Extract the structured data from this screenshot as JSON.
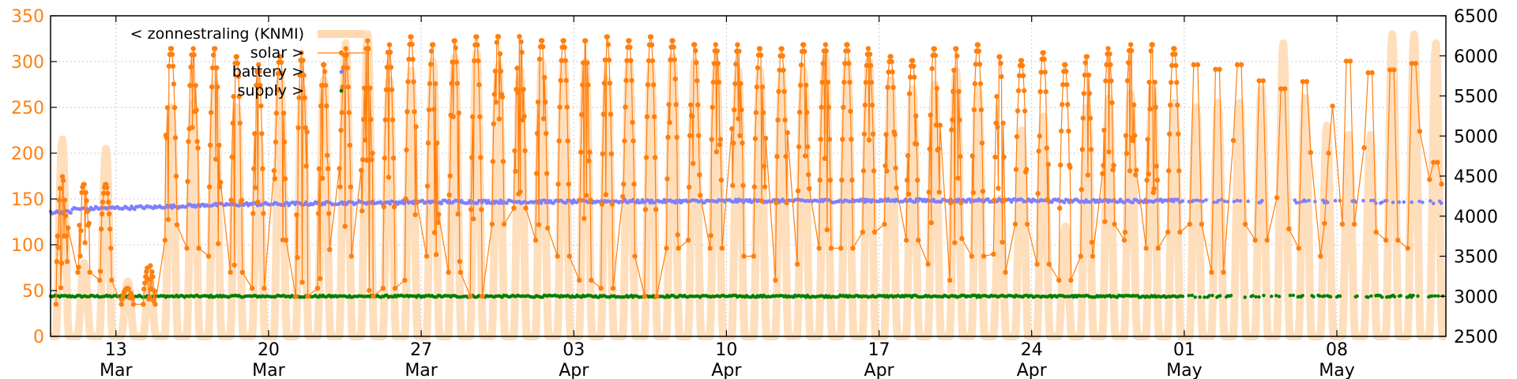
{
  "chart_data": {
    "type": "line",
    "title": "",
    "xlabel": "",
    "ylabel_left": "",
    "ylabel_right": "",
    "x_range": [
      "2024-03-10",
      "2024-05-13"
    ],
    "ylim_left": [
      0,
      350
    ],
    "ylim_right": [
      2500,
      6500
    ],
    "grid": true,
    "legend_position": "top-left",
    "y_ticks_left": [
      "0",
      "50",
      "100",
      "150",
      "200",
      "250",
      "300",
      "350"
    ],
    "y_ticks_right": [
      "2500",
      "3000",
      "3500",
      "4000",
      "4500",
      "5000",
      "5500",
      "6000",
      "6500"
    ],
    "x_ticks": [
      {
        "day": "13",
        "month": "Mar"
      },
      {
        "day": "20",
        "month": "Mar"
      },
      {
        "day": "27",
        "month": "Mar"
      },
      {
        "day": "03",
        "month": "Apr"
      },
      {
        "day": "10",
        "month": "Apr"
      },
      {
        "day": "17",
        "month": "Apr"
      },
      {
        "day": "24",
        "month": "Apr"
      },
      {
        "day": "01",
        "month": "May"
      },
      {
        "day": "08",
        "month": "May"
      }
    ],
    "legend": [
      {
        "label": "< zonnestraling (KNMI)",
        "color": "#ffd8b0"
      },
      {
        "label": "solar >",
        "color": "#ff7f0e"
      },
      {
        "label": "battery >",
        "color": "#7f7fff"
      },
      {
        "label": "supply >",
        "color": "#007f00"
      }
    ],
    "colors": {
      "zonnestraling": "#ffd8b0",
      "solar": "#ff7f0e",
      "battery": "#7f7fff",
      "supply": "#007f00",
      "left_axis": "#ff7f0e",
      "grid": "#cccccc"
    },
    "series": [
      {
        "name": "< zonnestraling (KNMI)",
        "axis": "left",
        "daily_peak": [
          215,
          80,
          205,
          60,
          60,
          250,
          255,
          275,
          250,
          220,
          285,
          270,
          280,
          320,
          330,
          280,
          290,
          300,
          305,
          310,
          295,
          290,
          300,
          300,
          300,
          280,
          300,
          295,
          305,
          300,
          295,
          290,
          290,
          285,
          290,
          305,
          300,
          300,
          280,
          270,
          275,
          290,
          270,
          150,
          225,
          240,
          120,
          250,
          260,
          265,
          270,
          255,
          250,
          255,
          255,
          270,
          320,
          260,
          230,
          220,
          220,
          330,
          330,
          320
        ]
      },
      {
        "name": "solar >",
        "axis": "right",
        "daily_peak_mW": [
          4500,
          4400,
          4400,
          3100,
          3400,
          6100,
          6100,
          6100,
          6000,
          5900,
          6000,
          6050,
          5900,
          6100,
          6200,
          6150,
          6250,
          6150,
          6200,
          6250,
          6250,
          6250,
          6200,
          6200,
          6200,
          6250,
          6200,
          6250,
          6200,
          6150,
          6150,
          6150,
          6100,
          6100,
          6150,
          6150,
          6150,
          6100,
          6000,
          5950,
          6100,
          6100,
          6150,
          6000,
          5950,
          6050,
          5900,
          6000,
          6100,
          6150,
          6150,
          6100,
          6100,
          6100,
          6100,
          5900,
          5800,
          5900,
          6250,
          6150,
          6000,
          6050,
          6150,
          4700
        ],
        "daily_min_mW": [
          2900,
          3300,
          3200,
          2900,
          2900,
          3700,
          3600,
          3500,
          3300,
          3100,
          3700,
          3000,
          3100,
          3500,
          3000,
          3100,
          3200,
          3500,
          3300,
          3000,
          3900,
          4100,
          3700,
          3500,
          3200,
          3100,
          3500,
          3000,
          3600,
          3700,
          3600,
          3500,
          3500,
          3200,
          3400,
          3600,
          3600,
          3800,
          3900,
          3700,
          3400,
          3200,
          3500,
          3300,
          3900,
          3400,
          3200,
          3500,
          3900,
          3700,
          3600,
          3800,
          3900,
          3300,
          3900,
          3700,
          3600,
          3600,
          3500,
          3900,
          3800,
          3700,
          3600,
          4400
        ]
      },
      {
        "name": "battery >",
        "axis": "right",
        "daily_mean_mW": [
          4050,
          4090,
          4100,
          4105,
          4110,
          4120,
          4130,
          4140,
          4145,
          4150,
          4150,
          4155,
          4160,
          4165,
          4170,
          4170,
          4175,
          4175,
          4180,
          4180,
          4180,
          4180,
          4180,
          4180,
          4180,
          4185,
          4185,
          4185,
          4185,
          4185,
          4185,
          4190,
          4190,
          4190,
          4190,
          4190,
          4190,
          4195,
          4195,
          4195,
          4195,
          4195,
          4195,
          4195,
          4195,
          4190,
          4190,
          4190,
          4190,
          4190,
          4190,
          4190,
          4190,
          4190,
          4180,
          4180,
          4180,
          4180,
          4180,
          4180,
          4180,
          4180,
          4175,
          4170
        ]
      },
      {
        "name": "supply >",
        "axis": "right",
        "daily_mean_mW": [
          3000,
          3000,
          3000,
          3000,
          3000,
          3000,
          3000,
          3000,
          3000,
          3000,
          3000,
          3000,
          3000,
          3000,
          3000,
          3000,
          3000,
          3000,
          3000,
          3000,
          3000,
          3000,
          3000,
          3000,
          3000,
          3000,
          3000,
          3000,
          3000,
          3000,
          3000,
          3000,
          3000,
          3000,
          3000,
          3000,
          3000,
          3000,
          3000,
          3000,
          3000,
          3000,
          3000,
          3000,
          3000,
          3000,
          3000,
          3000,
          3000,
          3000,
          3000,
          3000,
          3000,
          3000,
          3000,
          3000,
          3000,
          3000,
          3000,
          3000,
          3000,
          3000,
          3000,
          3000
        ]
      }
    ]
  }
}
